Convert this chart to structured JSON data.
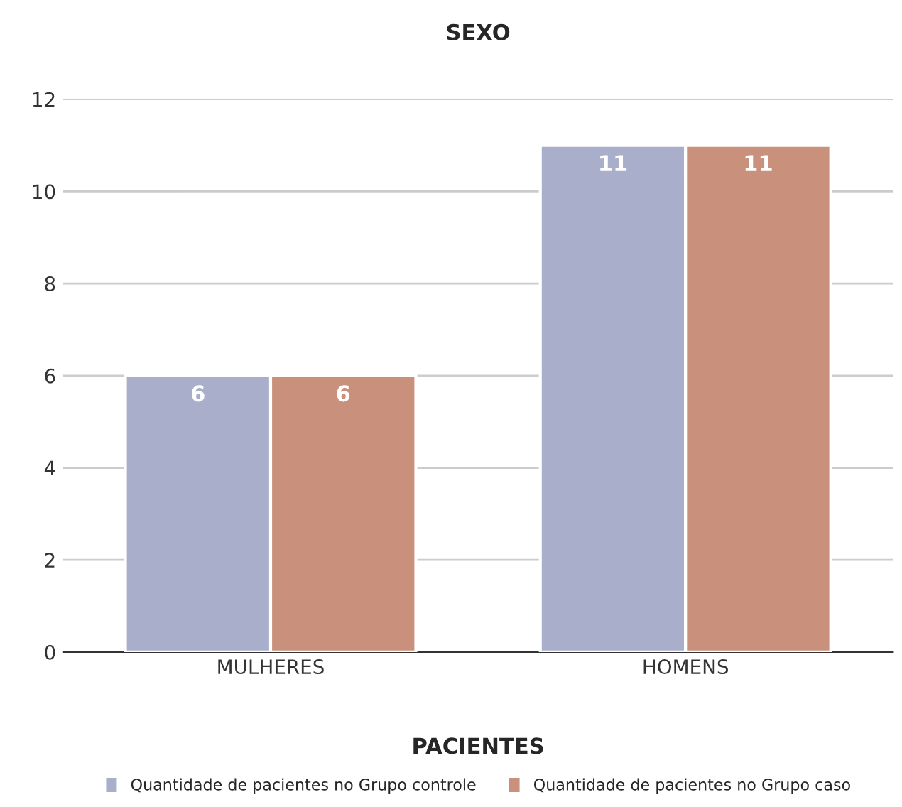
{
  "chart_data": {
    "type": "bar",
    "title": "SEXO",
    "xlabel": "PACIENTES",
    "categories": [
      "MULHERES",
      "HOMENS"
    ],
    "series": [
      {
        "name": "Quantidade de pacientes no Grupo controle",
        "color": "#a9aecb",
        "values": [
          6,
          11
        ]
      },
      {
        "name": "Quantidade de pacientes no Grupo caso",
        "color": "#c9917b",
        "values": [
          6,
          11
        ]
      }
    ],
    "ylim": [
      0,
      12
    ],
    "yticks": [
      0,
      2,
      4,
      6,
      8,
      10,
      12
    ],
    "grid": "y",
    "legend": "bottom",
    "data_labels": true
  }
}
